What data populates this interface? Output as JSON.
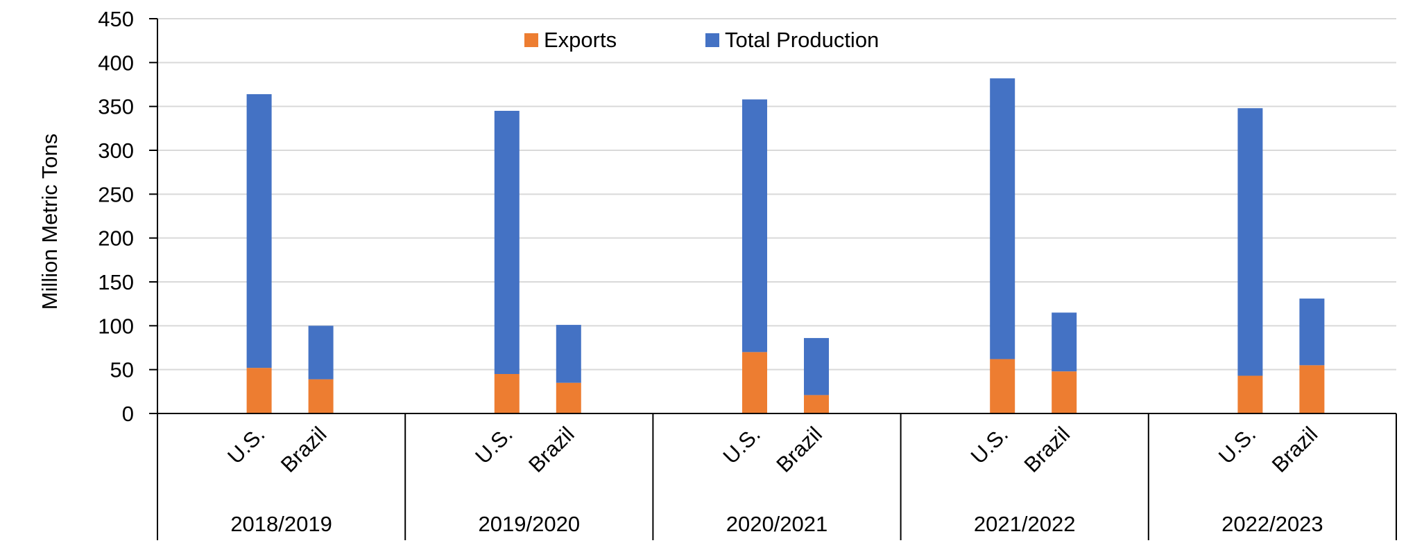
{
  "chart_data": {
    "type": "bar",
    "stacked": true,
    "title": "",
    "ylabel": "Million Metric Tons",
    "xlabel": "",
    "ylim": [
      0,
      450
    ],
    "y_ticks": [
      0,
      50,
      100,
      150,
      200,
      250,
      300,
      350,
      400,
      450
    ],
    "grid": true,
    "legend_position": "top-center",
    "groups": [
      "2018/2019",
      "2019/2020",
      "2020/2021",
      "2021/2022",
      "2022/2023"
    ],
    "categories": [
      "U.S.",
      "Brazil"
    ],
    "series": [
      {
        "name": "Exports",
        "color": "#ED7D31",
        "values": [
          [
            52,
            39
          ],
          [
            45,
            35
          ],
          [
            70,
            21
          ],
          [
            62,
            48
          ],
          [
            43,
            55
          ]
        ]
      },
      {
        "name": "Total Production",
        "color": "#4472C4",
        "values": [
          [
            312,
            61
          ],
          [
            300,
            66
          ],
          [
            288,
            65
          ],
          [
            320,
            67
          ],
          [
            305,
            76
          ]
        ]
      }
    ],
    "totals": [
      [
        364,
        100
      ],
      [
        345,
        101
      ],
      [
        358,
        86
      ],
      [
        382,
        115
      ],
      [
        348,
        131
      ]
    ]
  }
}
